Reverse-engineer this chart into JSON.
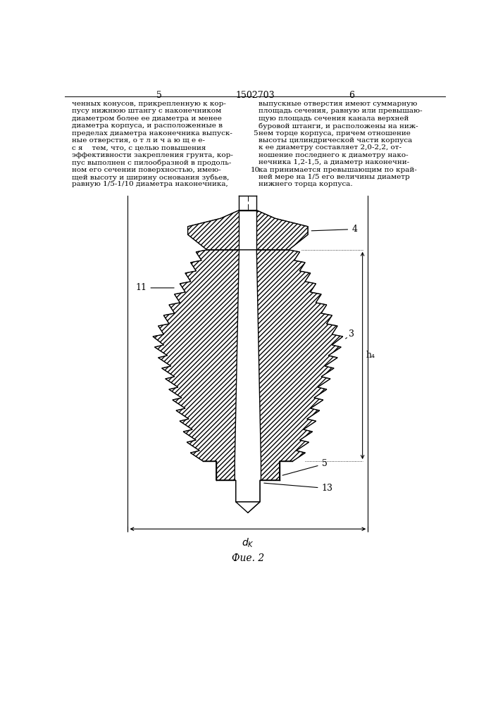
{
  "bg_color": "#ffffff",
  "line_color": "#000000",
  "fig_width": 7.07,
  "fig_height": 10.0,
  "title": "1502703",
  "page_left": "5",
  "page_right": "6",
  "fig_label": "Фие. 2",
  "text_left": "ченных конусов, прикрепленную к кор-\nпусу нижнюю штангу с наконечником\nдиаметром более ее диаметра и менее\nдиаметра корпуса, и расположенные в\nпределах диаметра наконечника выпуск-\nные отверстия, о т л и ч а ю щ е е-\nс я    тем, что, с целью повышения\nэффективности закрепления грунта, кор-\nпус выполнен с пилообразной в продоль-\nном его сечении поверхностью, имею-\nщей высоту и ширину основания зубьев,\nравную 1/5-1/10 диаметра наконечника,",
  "text_right": "выпускные отверстия имеют суммарную\nплощадь сечения, равную или превышаю-\nщую площадь сечения канала верхней\nбуровой штанги, и расположены на ниж-\nнем торце корпуса, причем отношение\nвысоты цилиндрической части корпуса\nк ее диаметру составляет 2,0-2,2, от-\nношение последнего к диаметру нако-\nнечника 1,2-1,5, а диаметр наконечни-\nка принимается превышающим по край-\nней мере на 1/5 его величины диаметр\nнижнего торца корпуса."
}
